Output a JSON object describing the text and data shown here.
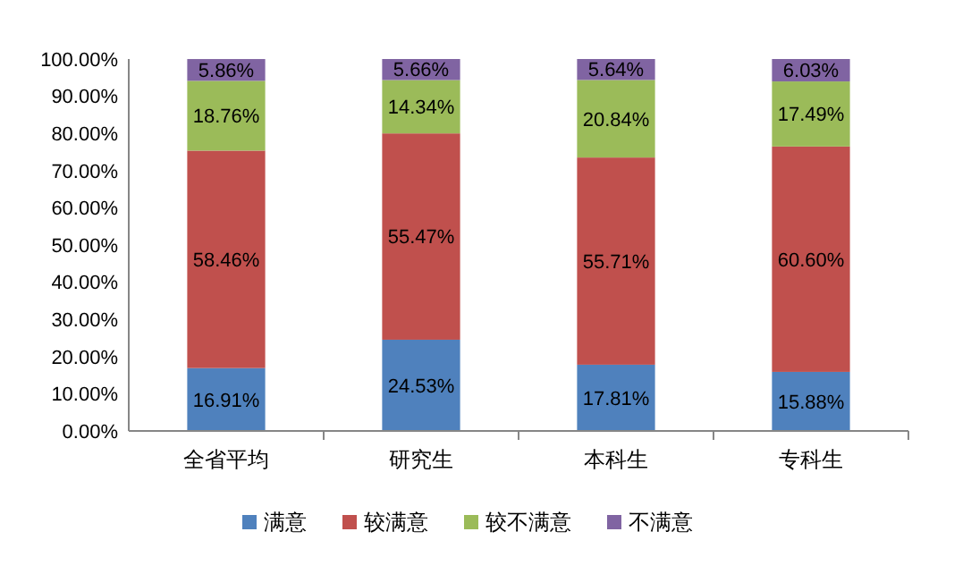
{
  "chart_data": {
    "type": "bar",
    "stacked": true,
    "categories": [
      "全省平均",
      "研究生",
      "本科生",
      "专科生"
    ],
    "series": [
      {
        "name": "满意",
        "color": "#4f81bd",
        "values": [
          16.91,
          24.53,
          17.81,
          15.88
        ],
        "value_labels": [
          "16.91%",
          "24.53%",
          "17.81%",
          "15.88%"
        ]
      },
      {
        "name": "较满意",
        "color": "#c0504d",
        "values": [
          58.46,
          55.47,
          55.71,
          60.6
        ],
        "value_labels": [
          "58.46%",
          "55.47%",
          "55.71%",
          "60.60%"
        ]
      },
      {
        "name": "较不满意",
        "color": "#9bbb59",
        "values": [
          18.76,
          14.34,
          20.84,
          17.49
        ],
        "value_labels": [
          "18.76%",
          "14.34%",
          "20.84%",
          "17.49%"
        ]
      },
      {
        "name": "不满意",
        "color": "#8064a2",
        "values": [
          5.86,
          5.66,
          5.64,
          6.03
        ],
        "value_labels": [
          "5.86%",
          "5.66%",
          "5.64%",
          "6.03%"
        ]
      }
    ],
    "ylim": [
      0,
      100
    ],
    "yticks": [
      {
        "value": 0,
        "label": "0.00%"
      },
      {
        "value": 10,
        "label": "10.00%"
      },
      {
        "value": 20,
        "label": "20.00%"
      },
      {
        "value": 30,
        "label": "30.00%"
      },
      {
        "value": 40,
        "label": "40.00%"
      },
      {
        "value": 50,
        "label": "50.00%"
      },
      {
        "value": 60,
        "label": "60.00%"
      },
      {
        "value": 70,
        "label": "70.00%"
      },
      {
        "value": 80,
        "label": "80.00%"
      },
      {
        "value": 90,
        "label": "90.00%"
      },
      {
        "value": 100,
        "label": "100.00%"
      }
    ],
    "grid": false,
    "legend": "bottom"
  }
}
